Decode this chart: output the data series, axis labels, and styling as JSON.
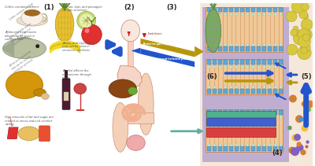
{
  "background_color": "#ffffff",
  "section1_label": "(1)",
  "section2_label": "(2)",
  "section3_label": "(3)",
  "section4_label": "(4)",
  "section5_label": "(5)",
  "section6_label": "(6)",
  "right_panel_bg": "#f0e0d0",
  "gut_panel_bg": "#c0aed0",
  "label_fontsize": 6,
  "label_fontweight": "bold",
  "label_color": "#222222",
  "arrow_gold": "#b8960a",
  "arrow_blue": "#2255cc",
  "arrow_teal": "#60b0a0",
  "text_color": "#555555",
  "text_fontsize": 2.6
}
